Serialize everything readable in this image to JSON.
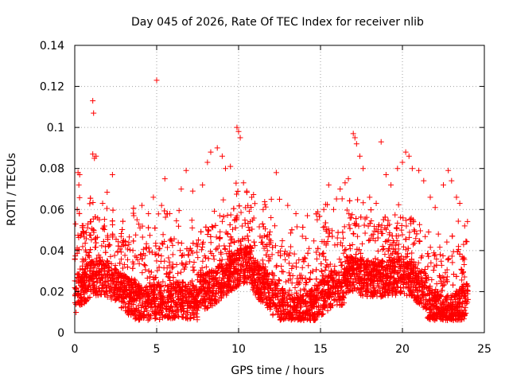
{
  "chart_data": {
    "type": "scatter",
    "title": "Day 045 of 2026, Rate Of TEC Index for receiver nlib",
    "xlabel": "GPS time / hours",
    "ylabel": "ROTI / TECUs",
    "xlim": [
      0,
      25
    ],
    "ylim": [
      0,
      0.14
    ],
    "xticks": [
      0,
      5,
      10,
      15,
      20,
      25
    ],
    "xtick_labels": [
      "0",
      "5",
      "10",
      "15",
      "20",
      "25"
    ],
    "yticks": [
      0,
      0.02,
      0.04,
      0.06,
      0.08,
      0.1,
      0.12,
      0.14
    ],
    "ytick_labels": [
      "0",
      "0.02",
      "0.04",
      "0.06",
      "0.08",
      "0.1",
      "0.12",
      "0.14"
    ],
    "grid": true,
    "marker": "+",
    "marker_color": "#ff0000",
    "series": [
      {
        "name": "ROTI",
        "points": [
          [
            0.05,
            0.053
          ],
          [
            0.15,
            0.06
          ],
          [
            0.2,
            0.078
          ],
          [
            0.25,
            0.072
          ],
          [
            0.3,
            0.077
          ],
          [
            1.1,
            0.113
          ],
          [
            1.15,
            0.107
          ],
          [
            1.1,
            0.087
          ],
          [
            1.2,
            0.085
          ],
          [
            1.3,
            0.086
          ],
          [
            1.5,
            0.055
          ],
          [
            1.7,
            0.063
          ],
          [
            2.3,
            0.077
          ],
          [
            3.6,
            0.057
          ],
          [
            3.8,
            0.055
          ],
          [
            4.1,
            0.062
          ],
          [
            4.5,
            0.058
          ],
          [
            4.8,
            0.066
          ],
          [
            5.0,
            0.123
          ],
          [
            5.3,
            0.062
          ],
          [
            5.5,
            0.075
          ],
          [
            5.8,
            0.058
          ],
          [
            6.5,
            0.07
          ],
          [
            6.8,
            0.079
          ],
          [
            7.2,
            0.069
          ],
          [
            7.8,
            0.072
          ],
          [
            8.1,
            0.083
          ],
          [
            8.3,
            0.088
          ],
          [
            8.7,
            0.09
          ],
          [
            9.0,
            0.086
          ],
          [
            9.2,
            0.08
          ],
          [
            9.5,
            0.081
          ],
          [
            9.9,
            0.1
          ],
          [
            10.0,
            0.098
          ],
          [
            10.1,
            0.095
          ],
          [
            10.3,
            0.073
          ],
          [
            10.5,
            0.069
          ],
          [
            10.8,
            0.066
          ],
          [
            11.5,
            0.06
          ],
          [
            12.0,
            0.065
          ],
          [
            12.3,
            0.078
          ],
          [
            12.5,
            0.065
          ],
          [
            13.0,
            0.062
          ],
          [
            13.5,
            0.058
          ],
          [
            14.2,
            0.057
          ],
          [
            14.8,
            0.055
          ],
          [
            15.2,
            0.06
          ],
          [
            15.5,
            0.072
          ],
          [
            15.8,
            0.06
          ],
          [
            16.2,
            0.07
          ],
          [
            16.5,
            0.073
          ],
          [
            16.7,
            0.075
          ],
          [
            17.0,
            0.097
          ],
          [
            17.1,
            0.095
          ],
          [
            17.2,
            0.092
          ],
          [
            17.4,
            0.086
          ],
          [
            17.6,
            0.08
          ],
          [
            18.0,
            0.066
          ],
          [
            18.4,
            0.063
          ],
          [
            18.7,
            0.093
          ],
          [
            19.0,
            0.077
          ],
          [
            19.3,
            0.072
          ],
          [
            19.7,
            0.08
          ],
          [
            20.0,
            0.083
          ],
          [
            20.2,
            0.088
          ],
          [
            20.4,
            0.086
          ],
          [
            20.6,
            0.08
          ],
          [
            21.0,
            0.079
          ],
          [
            21.3,
            0.074
          ],
          [
            21.7,
            0.066
          ],
          [
            22.0,
            0.061
          ],
          [
            22.5,
            0.072
          ],
          [
            22.8,
            0.079
          ],
          [
            23.0,
            0.074
          ],
          [
            23.3,
            0.066
          ],
          [
            23.5,
            0.063
          ],
          [
            23.8,
            0.052
          ]
        ]
      }
    ]
  }
}
